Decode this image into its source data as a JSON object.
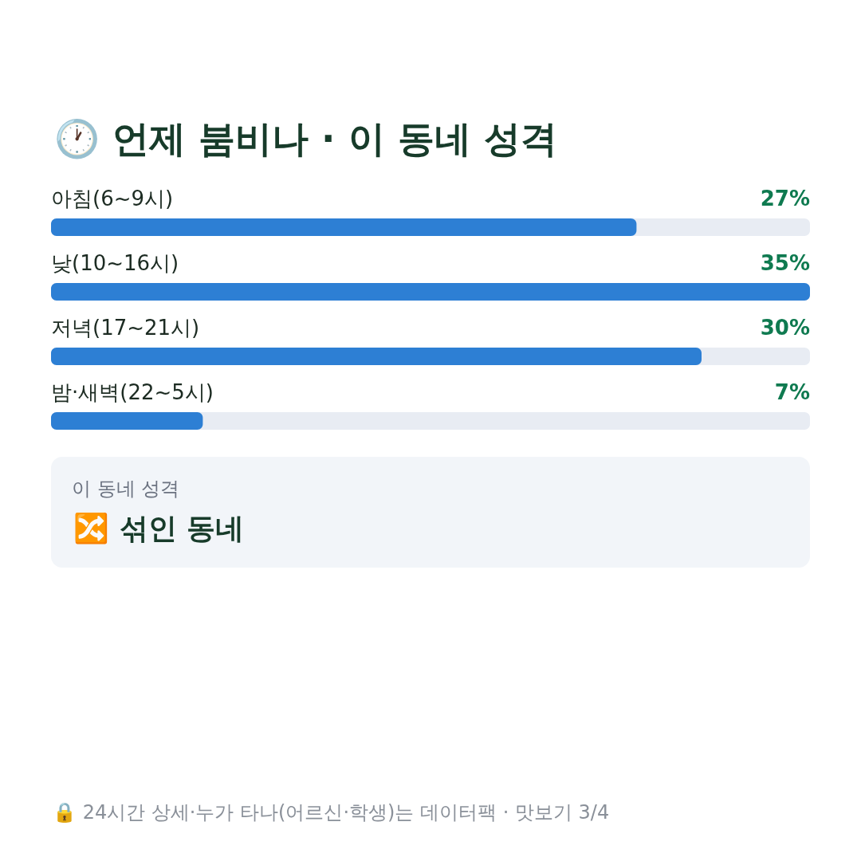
{
  "chart_data": {
    "type": "bar",
    "orientation": "horizontal",
    "title": "🕐 언제 붐비나 · 이 동네 성격",
    "categories": [
      "아침(6~9시)",
      "낮(10~16시)",
      "저녁(17~21시)",
      "밤·새벽(22~5시)"
    ],
    "values": [
      27,
      35,
      30,
      7
    ],
    "color": "#2d7fd4",
    "value_labels": [
      "27%",
      "35%",
      "30%",
      "7%"
    ],
    "xlim": [
      0,
      35
    ],
    "annotations": [
      "이 동네 성격",
      "🔀 섞인 동네",
      "🔒 24시간 상세·누가 타나(어르신·학생)는 데이터팩 · 맛보기 3/4"
    ]
  }
}
